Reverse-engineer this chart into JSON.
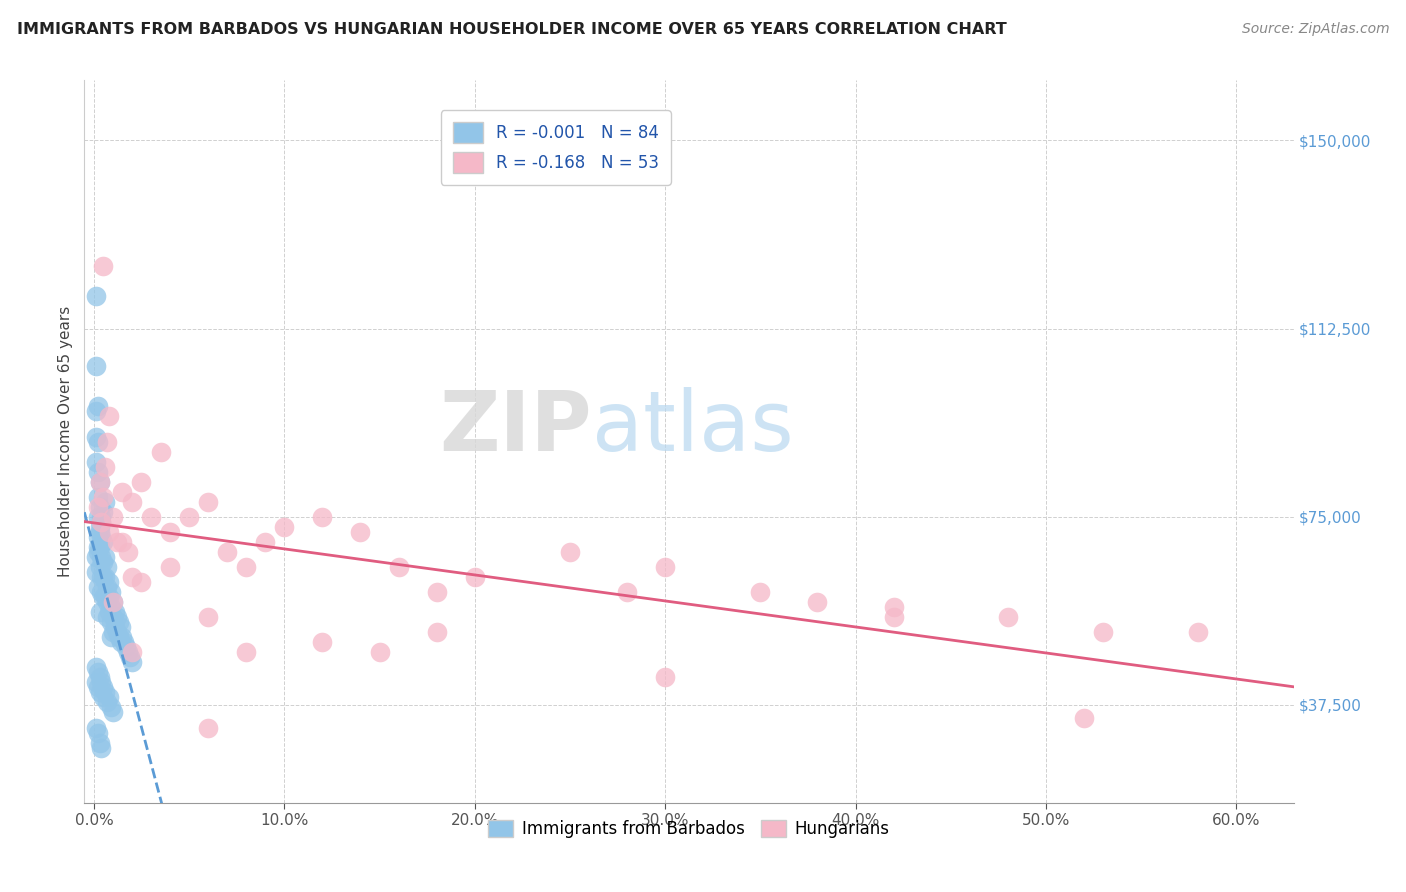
{
  "title": "IMMIGRANTS FROM BARBADOS VS HUNGARIAN HOUSEHOLDER INCOME OVER 65 YEARS CORRELATION CHART",
  "source": "Source: ZipAtlas.com",
  "ylabel": "Householder Income Over 65 years",
  "xlabel_ticks": [
    "0.0%",
    "10.0%",
    "20.0%",
    "30.0%",
    "40.0%",
    "50.0%",
    "60.0%"
  ],
  "xlabel_vals": [
    0.0,
    0.1,
    0.2,
    0.3,
    0.4,
    0.5,
    0.6
  ],
  "ytick_labels": [
    "$37,500",
    "$75,000",
    "$112,500",
    "$150,000"
  ],
  "ytick_vals": [
    37500,
    75000,
    112500,
    150000
  ],
  "xlim": [
    -0.005,
    0.63
  ],
  "ylim": [
    18000,
    162000
  ],
  "legend_labels": [
    "Immigrants from Barbados",
    "Hungarians"
  ],
  "R_blue": -0.001,
  "N_blue": 84,
  "R_pink": -0.168,
  "N_pink": 53,
  "blue_color": "#92c5e8",
  "pink_color": "#f5b8c8",
  "blue_line_color": "#5b9bd5",
  "pink_line_color": "#e05c80",
  "watermark_zip": "ZIP",
  "watermark_atlas": "atlas",
  "blue_scatter_x": [
    0.001,
    0.001,
    0.001,
    0.001,
    0.001,
    0.002,
    0.002,
    0.002,
    0.002,
    0.002,
    0.002,
    0.002,
    0.003,
    0.003,
    0.003,
    0.003,
    0.003,
    0.004,
    0.004,
    0.004,
    0.004,
    0.004,
    0.005,
    0.005,
    0.005,
    0.005,
    0.006,
    0.006,
    0.006,
    0.007,
    0.007,
    0.007,
    0.007,
    0.008,
    0.008,
    0.008,
    0.009,
    0.009,
    0.009,
    0.009,
    0.01,
    0.01,
    0.01,
    0.011,
    0.011,
    0.012,
    0.012,
    0.013,
    0.013,
    0.014,
    0.014,
    0.015,
    0.016,
    0.017,
    0.018,
    0.019,
    0.02,
    0.001,
    0.001,
    0.002,
    0.002,
    0.003,
    0.003,
    0.004,
    0.005,
    0.005,
    0.006,
    0.007,
    0.008,
    0.009,
    0.01,
    0.001,
    0.002,
    0.003,
    0.004,
    0.003,
    0.002,
    0.001,
    0.001,
    0.002,
    0.003,
    0.004,
    0.005,
    0.006
  ],
  "blue_scatter_y": [
    119000,
    105000,
    96000,
    91000,
    86000,
    97000,
    90000,
    84000,
    79000,
    75000,
    71000,
    68000,
    82000,
    77000,
    73000,
    69000,
    65000,
    75000,
    71000,
    67000,
    63000,
    60000,
    70000,
    66000,
    63000,
    59000,
    67000,
    63000,
    59000,
    65000,
    61000,
    58000,
    55000,
    62000,
    59000,
    56000,
    60000,
    57000,
    54000,
    51000,
    58000,
    55000,
    52000,
    56000,
    53000,
    55000,
    52000,
    54000,
    51000,
    53000,
    50000,
    51000,
    50000,
    49000,
    48000,
    47000,
    46000,
    45000,
    42000,
    44000,
    41000,
    43000,
    40000,
    42000,
    41000,
    39000,
    40000,
    38000,
    39000,
    37000,
    36000,
    33000,
    32000,
    30000,
    29000,
    56000,
    61000,
    64000,
    67000,
    69000,
    72000,
    74000,
    76000,
    78000
  ],
  "pink_scatter_x": [
    0.002,
    0.003,
    0.004,
    0.005,
    0.006,
    0.007,
    0.008,
    0.01,
    0.012,
    0.015,
    0.018,
    0.02,
    0.025,
    0.03,
    0.035,
    0.04,
    0.05,
    0.06,
    0.07,
    0.08,
    0.09,
    0.1,
    0.12,
    0.14,
    0.16,
    0.18,
    0.2,
    0.25,
    0.3,
    0.35,
    0.38,
    0.42,
    0.48,
    0.53,
    0.58,
    0.008,
    0.015,
    0.025,
    0.04,
    0.06,
    0.08,
    0.12,
    0.18,
    0.28,
    0.42,
    0.52,
    0.005,
    0.01,
    0.02,
    0.15,
    0.3,
    0.02,
    0.06
  ],
  "pink_scatter_y": [
    77000,
    82000,
    74000,
    79000,
    85000,
    90000,
    72000,
    75000,
    70000,
    80000,
    68000,
    78000,
    82000,
    75000,
    88000,
    72000,
    75000,
    78000,
    68000,
    65000,
    70000,
    73000,
    75000,
    72000,
    65000,
    60000,
    63000,
    68000,
    65000,
    60000,
    58000,
    57000,
    55000,
    52000,
    52000,
    95000,
    70000,
    62000,
    65000,
    55000,
    48000,
    50000,
    52000,
    60000,
    55000,
    35000,
    125000,
    58000,
    48000,
    48000,
    43000,
    63000,
    33000
  ]
}
